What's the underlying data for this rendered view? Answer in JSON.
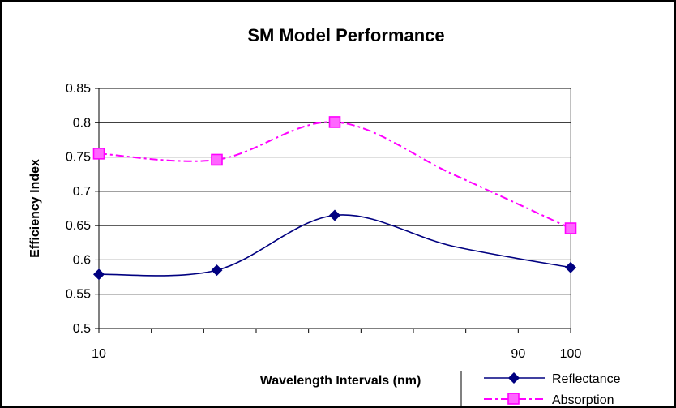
{
  "chart_data": {
    "type": "line",
    "title": "SM Model Performance",
    "xlabel": "Wavelength Intervals (nm)",
    "ylabel": "Efficiency Index",
    "ylim": [
      0.5,
      0.85
    ],
    "y_ticks": [
      "0.5",
      "0.55",
      "0.6",
      "0.65",
      "0.7",
      "0.75",
      "0.8",
      "0.85"
    ],
    "x_tick_labels": [
      "10",
      "90",
      "100"
    ],
    "grid": "horizontal",
    "legend_position": "bottom-right",
    "smoothed": true,
    "categories": [
      "10",
      "",
      "",
      "90",
      "100"
    ],
    "series": [
      {
        "name": "Reflectance",
        "values": [
          0.579,
          0.585,
          0.665,
          0.62,
          0.589
        ],
        "color": "#000080",
        "marker": "diamond",
        "line_style": "solid"
      },
      {
        "name": "Absorption",
        "values": [
          0.755,
          0.746,
          0.801,
          0.725,
          0.646
        ],
        "color": "#ff00ff",
        "marker": "square",
        "line_style": "dash-dot"
      }
    ]
  }
}
